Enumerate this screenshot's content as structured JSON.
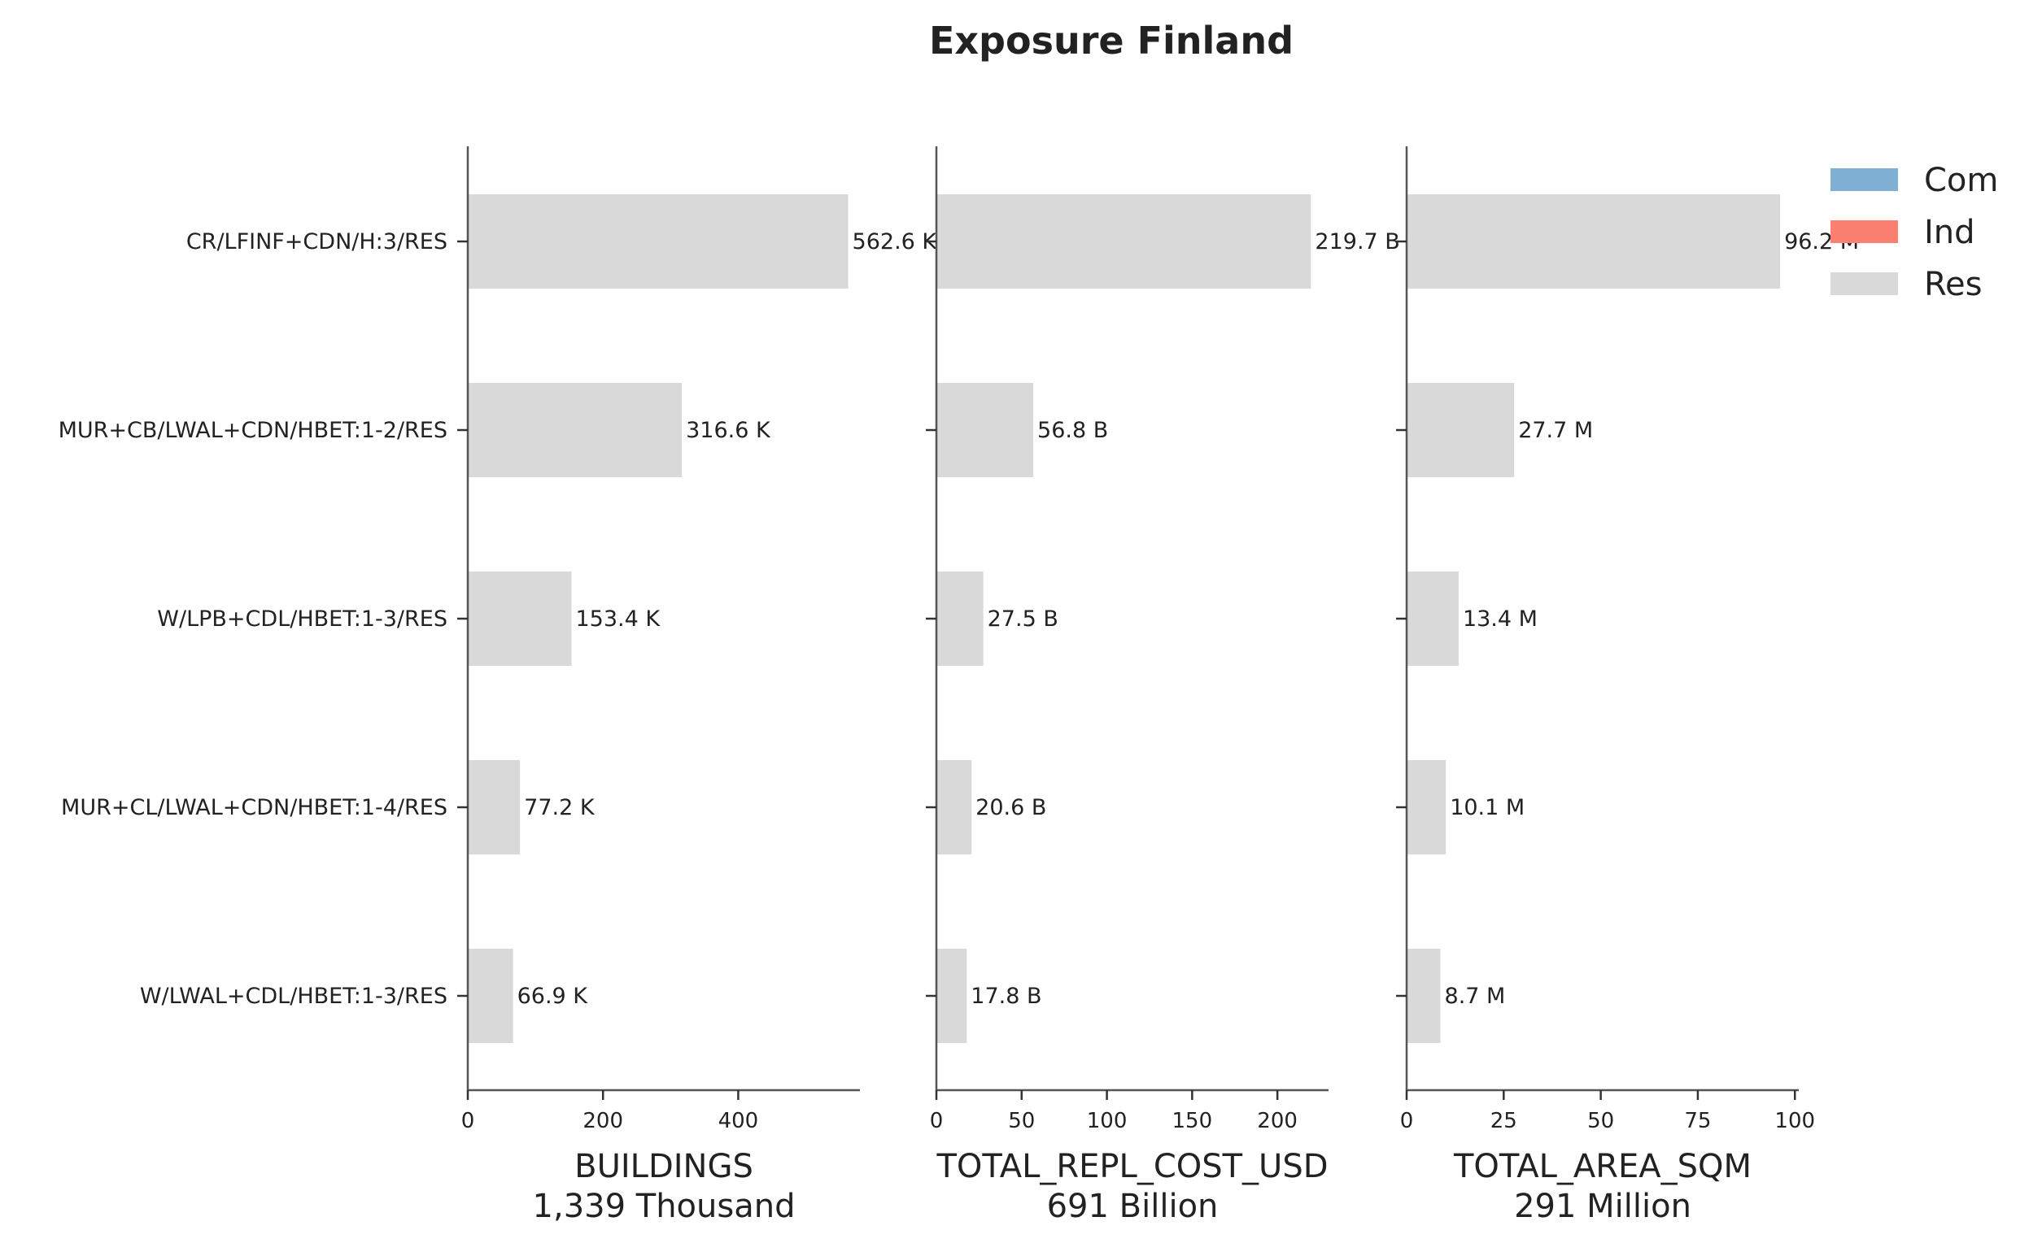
{
  "chart_data": {
    "type": "bar",
    "orientation": "horizontal",
    "title": "Exposure Finland",
    "categories": [
      "CR/LFINF+CDN/H:3/RES",
      "MUR+CB/LWAL+CDN/HBET:1-2/RES",
      "W/LPB+CDL/HBET:1-3/RES",
      "MUR+CL/LWAL+CDN/HBET:1-4/RES",
      "W/LWAL+CDL/HBET:1-3/RES"
    ],
    "legend": {
      "placement": "top-right",
      "entries": [
        {
          "name": "Com",
          "color": "#7fb0d4"
        },
        {
          "name": "Ind",
          "color": "#fb8072"
        },
        {
          "name": "Res",
          "color": "#d9d9d9"
        }
      ]
    },
    "panels": [
      {
        "xlabel": "BUILDINGS",
        "total": "1,339 Thousand",
        "xlim": [
          0,
          580
        ],
        "xticks": [
          0,
          200,
          400
        ],
        "xtick_labels": [
          "0",
          "200",
          "400"
        ],
        "values": [
          562.6,
          316.6,
          153.4,
          77.2,
          66.9
        ],
        "value_labels": [
          "562.6 K",
          "316.6 K",
          "153.4 K",
          "77.2 K",
          "66.9 K"
        ]
      },
      {
        "xlabel": "TOTAL_REPL_COST_USD",
        "total": "691 Billion",
        "xlim": [
          0,
          230
        ],
        "xticks": [
          0,
          50,
          100,
          150,
          200
        ],
        "xtick_labels": [
          "0",
          "50",
          "100",
          "150",
          "200"
        ],
        "values": [
          219.7,
          56.8,
          27.5,
          20.6,
          17.8
        ],
        "value_labels": [
          "219.7 B",
          "56.8 B",
          "27.5 B",
          "20.6 B",
          "17.8 B"
        ]
      },
      {
        "xlabel": "TOTAL_AREA_SQM",
        "total": "291 Million",
        "xlim": [
          0,
          101
        ],
        "xticks": [
          0,
          25,
          50,
          75,
          100
        ],
        "xtick_labels": [
          "0",
          "25",
          "50",
          "75",
          "100"
        ],
        "values": [
          96.2,
          27.7,
          13.4,
          10.1,
          8.7
        ],
        "value_labels": [
          "96.2 M",
          "27.7 M",
          "13.4 M",
          "10.1 M",
          "8.7 M"
        ]
      }
    ],
    "grid": false
  }
}
